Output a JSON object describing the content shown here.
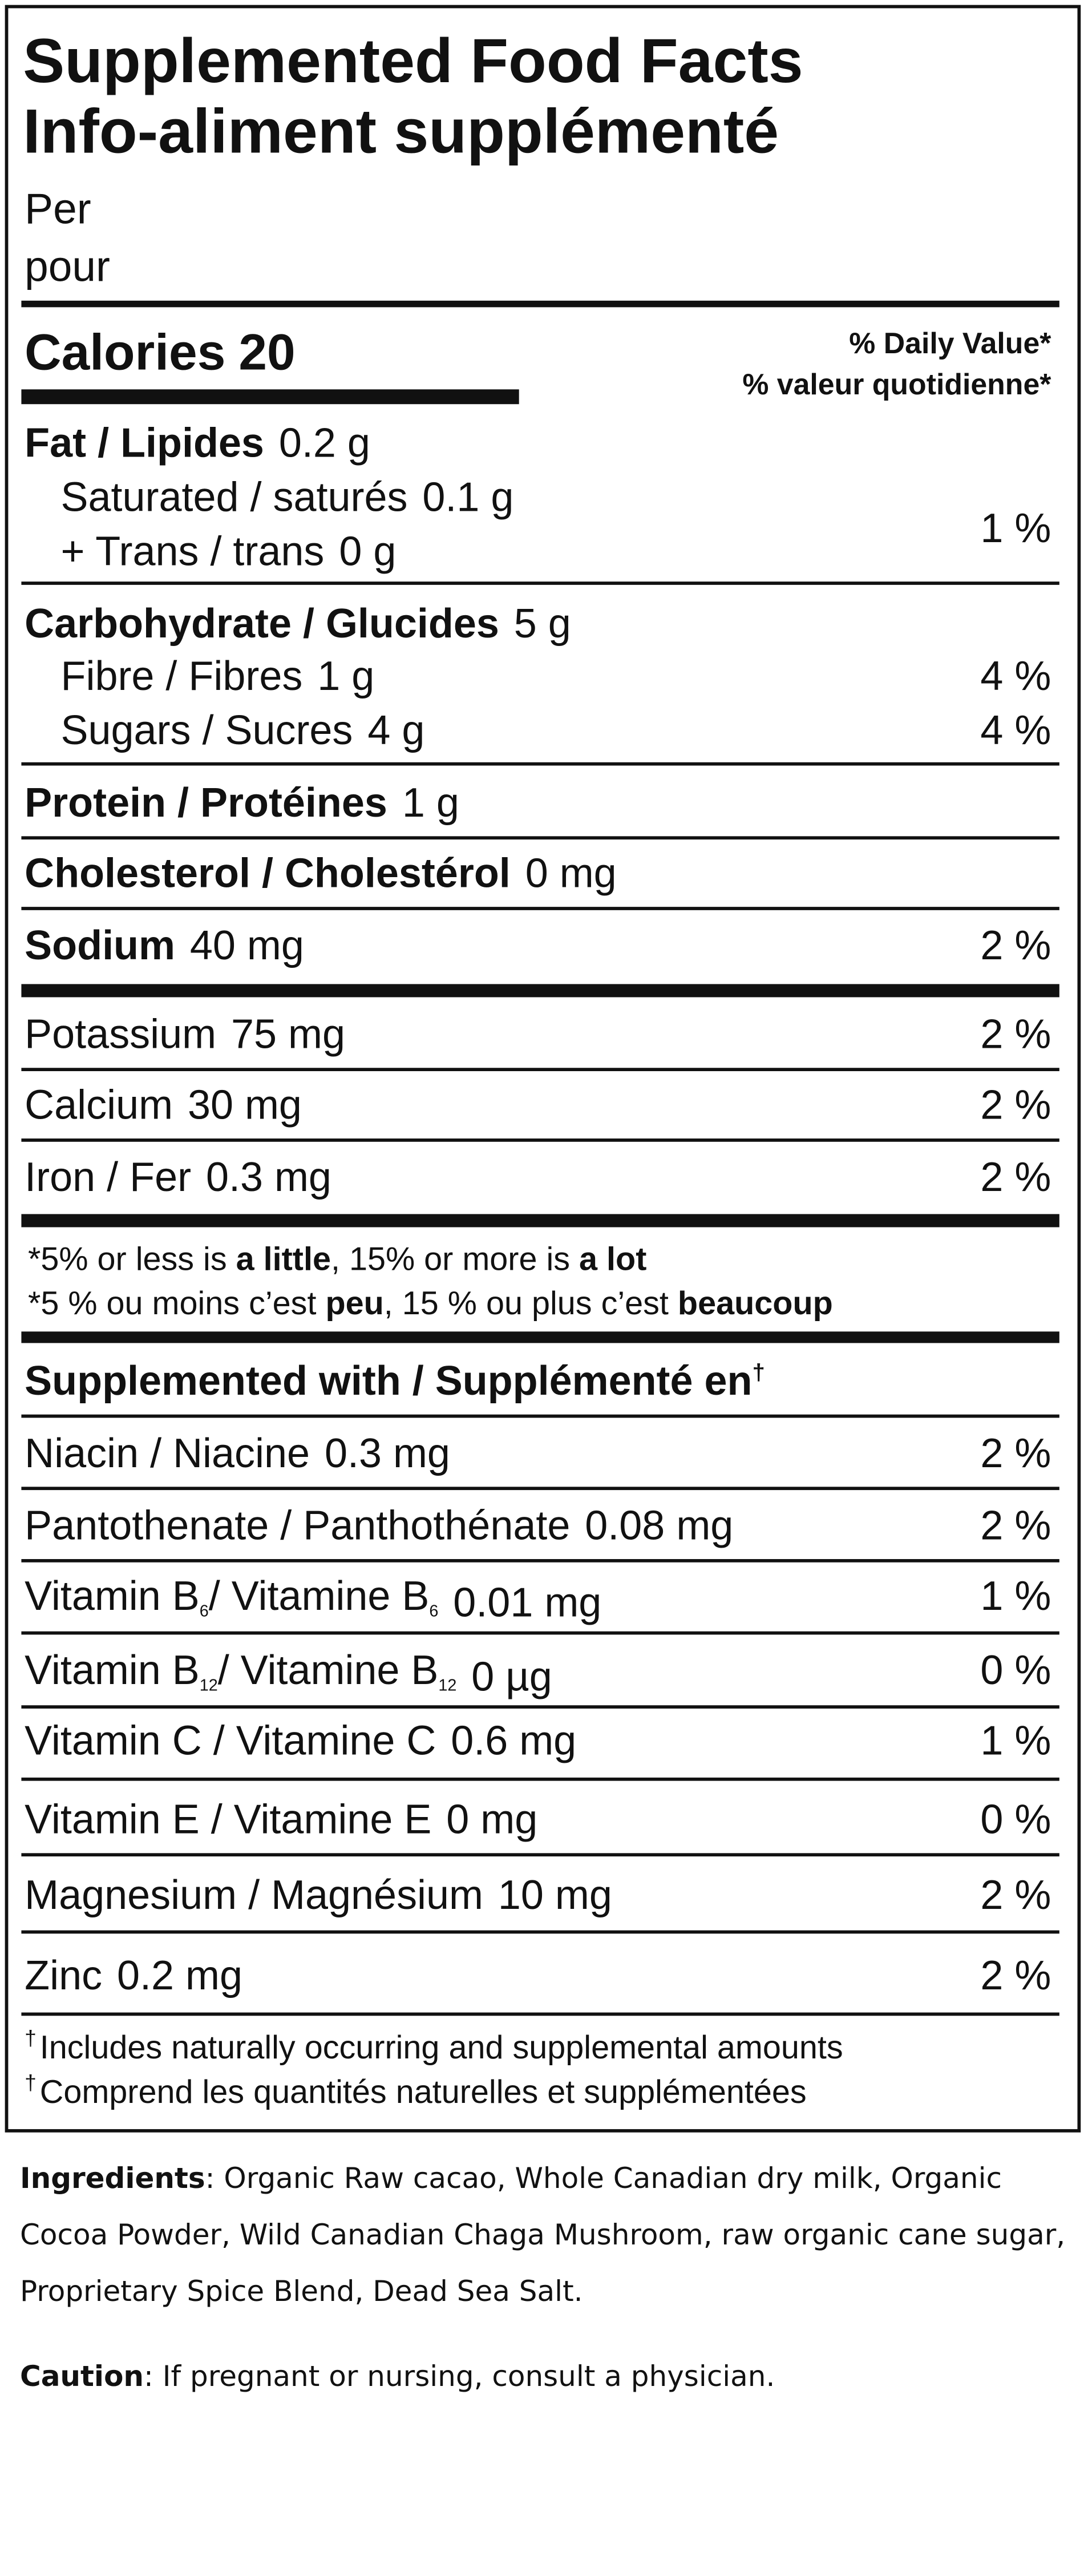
{
  "header": {
    "title_en": "Supplemented Food Facts",
    "title_fr": "Info-aliment supplémenté",
    "per": "Per",
    "pour": "pour"
  },
  "calories": {
    "label": "Calories",
    "value": "20"
  },
  "daily_value": {
    "en": "% Daily Value*",
    "fr": "% valeur quotidienne*"
  },
  "nutrients": [
    {
      "label": "Fat / Lipides",
      "amount": "0.2 g"
    },
    {
      "label": "Saturated / saturés",
      "amount": "0.1 g"
    },
    {
      "label": "+ Trans / trans",
      "amount": "0 g",
      "dv": "1 %"
    },
    {
      "label": "Carbohydrate / Glucides",
      "amount": "5 g"
    },
    {
      "label": "Fibre / Fibres",
      "amount": "1 g",
      "dv": "4 %"
    },
    {
      "label": "Sugars / Sucres",
      "amount": "4 g",
      "dv": "4 %"
    },
    {
      "label": "Protein / Protéines",
      "amount": "1 g"
    },
    {
      "label": "Cholesterol / Cholestérol",
      "amount": "0 mg"
    },
    {
      "label": "Sodium",
      "amount": "40 mg",
      "dv": "2 %"
    },
    {
      "label": "Potassium",
      "amount": "75 mg",
      "dv": "2 %"
    },
    {
      "label": "Calcium",
      "amount": "30 mg",
      "dv": "2 %"
    },
    {
      "label": "Iron / Fer",
      "amount": "0.3 mg",
      "dv": "2 %"
    }
  ],
  "footnote": [
    [
      "*5% or less is ",
      "a little",
      ", 15% or more is ",
      "a lot"
    ],
    [
      "*5 % ou moins c’est ",
      "peu",
      ", 15 % ou plus c’est ",
      "beaucoup"
    ]
  ],
  "supplemented": {
    "heading": [
      "Supplemented with / Supplémenté en",
      "†"
    ],
    "rows": [
      {
        "label": [
          "Niacin / Niacine"
        ],
        "amount": "0.3 mg",
        "dv": "2 %"
      },
      {
        "label": [
          "Pantothenate / Panthothénate"
        ],
        "amount": "0.08 mg",
        "dv": "2 %"
      },
      {
        "label": [
          "Vitamin B",
          "6",
          "/ Vitamine B",
          "6"
        ],
        "amount": "0.01 mg",
        "dv": "1 %"
      },
      {
        "label": [
          "Vitamin B",
          "12",
          "/ Vitamine B",
          "12"
        ],
        "amount": "0 µg",
        "dv": "0 %"
      },
      {
        "label": [
          "Vitamin C / Vitamine C"
        ],
        "amount": "0.6 mg",
        "dv": "1 %"
      },
      {
        "label": [
          "Vitamin E / Vitamine E"
        ],
        "amount": "0 mg",
        "dv": "0 %"
      },
      {
        "label": [
          "Magnesium / Magnésium"
        ],
        "amount": "10 mg",
        "dv": "2 %"
      },
      {
        "label": [
          "Zinc"
        ],
        "amount": "0.2 mg",
        "dv": "2 %"
      }
    ],
    "notes": [
      [
        "†",
        "Includes naturally occurring and supplemental amounts"
      ],
      [
        "†",
        "Comprend les quantités naturelles et supplémentées"
      ]
    ]
  },
  "ingredients": {
    "label": "Ingredients",
    "text": ": Organic Raw cacao, Whole Canadian dry milk, Organic Cocoa Powder, Wild Canadian Chaga Mushroom, raw organic cane sugar, Proprietary Spice Blend, Dead Sea Salt."
  },
  "caution": {
    "label": "Caution",
    "text": ": If pregnant or nursing, consult a physician."
  }
}
